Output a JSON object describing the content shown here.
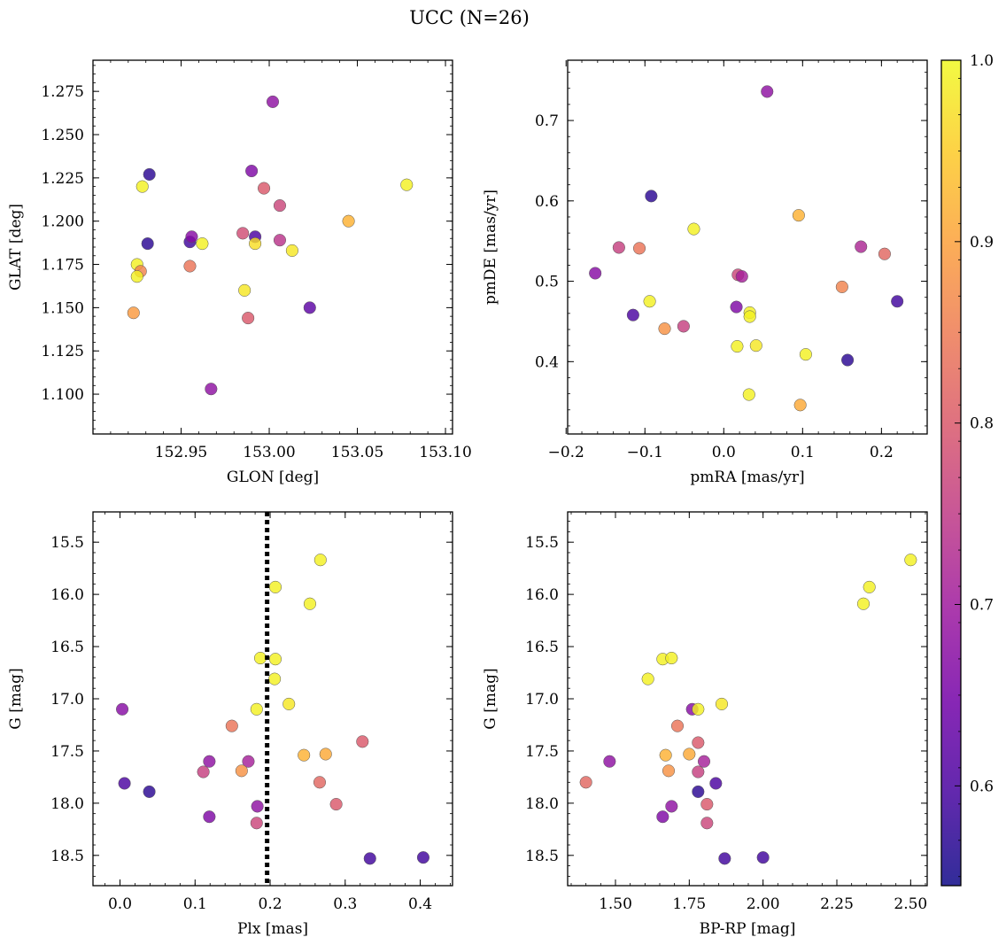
{
  "figure": {
    "title": "UCC (N=26)"
  },
  "chart_data": [
    {
      "type": "scatter",
      "xlabel": "GLON [deg]",
      "ylabel": "GLAT [deg]",
      "xlim": [
        152.9,
        153.104
      ],
      "ylim": [
        1.077,
        1.293
      ],
      "xticks": [
        152.95,
        153.0,
        153.05,
        153.1
      ],
      "xticklabels": [
        "152.95",
        "153.00",
        "153.05",
        "153.10"
      ],
      "yticks": [
        1.1,
        1.125,
        1.15,
        1.175,
        1.2,
        1.225,
        1.25,
        1.275
      ],
      "yticklabels": [
        "1.100",
        "1.125",
        "1.150",
        "1.175",
        "1.200",
        "1.225",
        "1.250",
        "1.275"
      ],
      "points": [
        {
          "x": 153.002,
          "y": 1.269,
          "c": 0.68
        },
        {
          "x": 152.932,
          "y": 1.227,
          "c": 0.57
        },
        {
          "x": 152.928,
          "y": 1.22,
          "c": 0.99
        },
        {
          "x": 152.99,
          "y": 1.229,
          "c": 0.66
        },
        {
          "x": 152.997,
          "y": 1.219,
          "c": 0.8
        },
        {
          "x": 153.006,
          "y": 1.209,
          "c": 0.77
        },
        {
          "x": 153.078,
          "y": 1.221,
          "c": 0.99
        },
        {
          "x": 153.045,
          "y": 1.2,
          "c": 0.92
        },
        {
          "x": 152.931,
          "y": 1.187,
          "c": 0.57
        },
        {
          "x": 152.955,
          "y": 1.188,
          "c": 0.59
        },
        {
          "x": 152.956,
          "y": 1.191,
          "c": 0.67
        },
        {
          "x": 152.962,
          "y": 1.187,
          "c": 0.99
        },
        {
          "x": 152.985,
          "y": 1.193,
          "c": 0.78
        },
        {
          "x": 152.992,
          "y": 1.191,
          "c": 0.6
        },
        {
          "x": 152.992,
          "y": 1.187,
          "c": 0.97
        },
        {
          "x": 153.006,
          "y": 1.189,
          "c": 0.74
        },
        {
          "x": 153.013,
          "y": 1.183,
          "c": 0.98
        },
        {
          "x": 152.925,
          "y": 1.175,
          "c": 0.99
        },
        {
          "x": 152.927,
          "y": 1.171,
          "c": 0.86
        },
        {
          "x": 152.925,
          "y": 1.168,
          "c": 0.99
        },
        {
          "x": 152.955,
          "y": 1.174,
          "c": 0.84
        },
        {
          "x": 152.986,
          "y": 1.16,
          "c": 0.98
        },
        {
          "x": 152.988,
          "y": 1.144,
          "c": 0.8
        },
        {
          "x": 153.023,
          "y": 1.15,
          "c": 0.62
        },
        {
          "x": 152.923,
          "y": 1.147,
          "c": 0.89
        },
        {
          "x": 152.967,
          "y": 1.103,
          "c": 0.68
        }
      ]
    },
    {
      "type": "scatter",
      "xlabel": "pmRA [mas/yr]",
      "ylabel": "pmDE [mas/yr]",
      "xlim": [
        -0.198,
        0.258
      ],
      "ylim": [
        0.31,
        0.775
      ],
      "xticks": [
        -0.2,
        -0.1,
        0.0,
        0.1,
        0.2
      ],
      "xticklabels": [
        "−0.2",
        "−0.1",
        "0.0",
        "0.1",
        "0.2"
      ],
      "yticks": [
        0.4,
        0.5,
        0.6,
        0.7
      ],
      "yticklabels": [
        "0.4",
        "0.5",
        "0.6",
        "0.7"
      ],
      "points": [
        {
          "x": 0.055,
          "y": 0.736,
          "c": 0.68
        },
        {
          "x": -0.092,
          "y": 0.606,
          "c": 0.57
        },
        {
          "x": -0.038,
          "y": 0.565,
          "c": 0.99
        },
        {
          "x": 0.095,
          "y": 0.582,
          "c": 0.92
        },
        {
          "x": -0.133,
          "y": 0.542,
          "c": 0.76
        },
        {
          "x": -0.107,
          "y": 0.541,
          "c": 0.84
        },
        {
          "x": -0.163,
          "y": 0.51,
          "c": 0.67
        },
        {
          "x": 0.174,
          "y": 0.543,
          "c": 0.72
        },
        {
          "x": 0.204,
          "y": 0.534,
          "c": 0.82
        },
        {
          "x": 0.018,
          "y": 0.508,
          "c": 0.77
        },
        {
          "x": 0.023,
          "y": 0.506,
          "c": 0.71
        },
        {
          "x": 0.15,
          "y": 0.493,
          "c": 0.86
        },
        {
          "x": 0.22,
          "y": 0.475,
          "c": 0.59
        },
        {
          "x": -0.094,
          "y": 0.475,
          "c": 0.99
        },
        {
          "x": 0.016,
          "y": 0.468,
          "c": 0.66
        },
        {
          "x": -0.115,
          "y": 0.458,
          "c": 0.6
        },
        {
          "x": 0.033,
          "y": 0.461,
          "c": 0.99
        },
        {
          "x": 0.033,
          "y": 0.456,
          "c": 0.99
        },
        {
          "x": -0.075,
          "y": 0.441,
          "c": 0.88
        },
        {
          "x": -0.051,
          "y": 0.444,
          "c": 0.76
        },
        {
          "x": 0.017,
          "y": 0.419,
          "c": 0.99
        },
        {
          "x": 0.041,
          "y": 0.42,
          "c": 0.98
        },
        {
          "x": 0.104,
          "y": 0.409,
          "c": 0.99
        },
        {
          "x": 0.157,
          "y": 0.402,
          "c": 0.57
        },
        {
          "x": 0.032,
          "y": 0.359,
          "c": 0.99
        },
        {
          "x": 0.097,
          "y": 0.346,
          "c": 0.91
        }
      ]
    },
    {
      "type": "scatter",
      "xlabel": "Plx [mas]",
      "ylabel": "G [mag]",
      "xlim": [
        -0.036,
        0.443
      ],
      "ylim": [
        18.79,
        15.21
      ],
      "xticks": [
        0.0,
        0.1,
        0.2,
        0.3,
        0.4
      ],
      "xticklabels": [
        "0.0",
        "0.1",
        "0.2",
        "0.3",
        "0.4"
      ],
      "yticks": [
        15.5,
        16.0,
        16.5,
        17.0,
        17.5,
        18.0,
        18.5
      ],
      "yticklabels": [
        "15.5",
        "16.0",
        "16.5",
        "17.0",
        "17.5",
        "18.0",
        "18.5"
      ],
      "vline": {
        "x": 0.196
      },
      "points": [
        {
          "x": 0.267,
          "y": 15.67,
          "c": 0.99
        },
        {
          "x": 0.207,
          "y": 15.93,
          "c": 0.99
        },
        {
          "x": 0.253,
          "y": 16.09,
          "c": 0.99
        },
        {
          "x": 0.187,
          "y": 16.61,
          "c": 0.99
        },
        {
          "x": 0.207,
          "y": 16.62,
          "c": 0.99
        },
        {
          "x": 0.206,
          "y": 16.81,
          "c": 0.99
        },
        {
          "x": 0.225,
          "y": 17.05,
          "c": 0.98
        },
        {
          "x": 0.182,
          "y": 17.1,
          "c": 0.99
        },
        {
          "x": 0.003,
          "y": 17.1,
          "c": 0.67
        },
        {
          "x": 0.149,
          "y": 17.26,
          "c": 0.84
        },
        {
          "x": 0.323,
          "y": 17.41,
          "c": 0.8
        },
        {
          "x": 0.245,
          "y": 17.54,
          "c": 0.92
        },
        {
          "x": 0.274,
          "y": 17.53,
          "c": 0.91
        },
        {
          "x": 0.119,
          "y": 17.6,
          "c": 0.68
        },
        {
          "x": 0.171,
          "y": 17.6,
          "c": 0.71
        },
        {
          "x": 0.111,
          "y": 17.7,
          "c": 0.76
        },
        {
          "x": 0.162,
          "y": 17.69,
          "c": 0.88
        },
        {
          "x": 0.266,
          "y": 17.8,
          "c": 0.82
        },
        {
          "x": 0.006,
          "y": 17.81,
          "c": 0.6
        },
        {
          "x": 0.039,
          "y": 17.89,
          "c": 0.57
        },
        {
          "x": 0.288,
          "y": 18.01,
          "c": 0.8
        },
        {
          "x": 0.183,
          "y": 18.03,
          "c": 0.68
        },
        {
          "x": 0.119,
          "y": 18.13,
          "c": 0.66
        },
        {
          "x": 0.182,
          "y": 18.19,
          "c": 0.77
        },
        {
          "x": 0.333,
          "y": 18.53,
          "c": 0.59
        },
        {
          "x": 0.404,
          "y": 18.52,
          "c": 0.59
        }
      ]
    },
    {
      "type": "scatter",
      "xlabel": "BP-RP [mag]",
      "ylabel": "G [mag]",
      "xlim": [
        1.338,
        2.556
      ],
      "ylim": [
        18.79,
        15.21
      ],
      "xticks": [
        1.5,
        1.75,
        2.0,
        2.25,
        2.5
      ],
      "xticklabels": [
        "1.50",
        "1.75",
        "2.00",
        "2.25",
        "2.50"
      ],
      "yticks": [
        15.5,
        16.0,
        16.5,
        17.0,
        17.5,
        18.0,
        18.5
      ],
      "yticklabels": [
        "15.5",
        "16.0",
        "16.5",
        "17.0",
        "17.5",
        "18.0",
        "18.5"
      ],
      "points": [
        {
          "x": 2.5,
          "y": 15.67,
          "c": 0.99
        },
        {
          "x": 2.36,
          "y": 15.93,
          "c": 0.99
        },
        {
          "x": 2.34,
          "y": 16.09,
          "c": 0.99
        },
        {
          "x": 1.66,
          "y": 16.62,
          "c": 0.99
        },
        {
          "x": 1.69,
          "y": 16.61,
          "c": 0.99
        },
        {
          "x": 1.61,
          "y": 16.81,
          "c": 0.99
        },
        {
          "x": 1.86,
          "y": 17.05,
          "c": 0.98
        },
        {
          "x": 1.76,
          "y": 17.1,
          "c": 0.67
        },
        {
          "x": 1.78,
          "y": 17.1,
          "c": 0.99
        },
        {
          "x": 1.71,
          "y": 17.26,
          "c": 0.84
        },
        {
          "x": 1.78,
          "y": 17.42,
          "c": 0.8
        },
        {
          "x": 1.67,
          "y": 17.54,
          "c": 0.92
        },
        {
          "x": 1.75,
          "y": 17.53,
          "c": 0.91
        },
        {
          "x": 1.48,
          "y": 17.6,
          "c": 0.68
        },
        {
          "x": 1.8,
          "y": 17.6,
          "c": 0.71
        },
        {
          "x": 1.68,
          "y": 17.69,
          "c": 0.88
        },
        {
          "x": 1.78,
          "y": 17.7,
          "c": 0.76
        },
        {
          "x": 1.4,
          "y": 17.8,
          "c": 0.82
        },
        {
          "x": 1.84,
          "y": 17.81,
          "c": 0.6
        },
        {
          "x": 1.78,
          "y": 17.89,
          "c": 0.57
        },
        {
          "x": 1.81,
          "y": 18.01,
          "c": 0.8
        },
        {
          "x": 1.69,
          "y": 18.03,
          "c": 0.68
        },
        {
          "x": 1.66,
          "y": 18.13,
          "c": 0.66
        },
        {
          "x": 1.81,
          "y": 18.19,
          "c": 0.77
        },
        {
          "x": 1.87,
          "y": 18.53,
          "c": 0.59
        },
        {
          "x": 2.0,
          "y": 18.52,
          "c": 0.59
        }
      ]
    }
  ],
  "colorbar": {
    "colormap": "plasma",
    "range": [
      0.545,
      1.0
    ],
    "ticks": [
      0.6,
      0.7,
      0.8,
      0.9,
      1.0
    ],
    "ticklabels": [
      "0.6",
      "0.7",
      "0.8",
      "0.9",
      "1.0"
    ],
    "stops": [
      "#0d0887",
      "#46039f",
      "#7201a8",
      "#9c179e",
      "#bd3786",
      "#d8576b",
      "#ed7953",
      "#fb9f3a",
      "#fdca26",
      "#f0f921"
    ]
  }
}
